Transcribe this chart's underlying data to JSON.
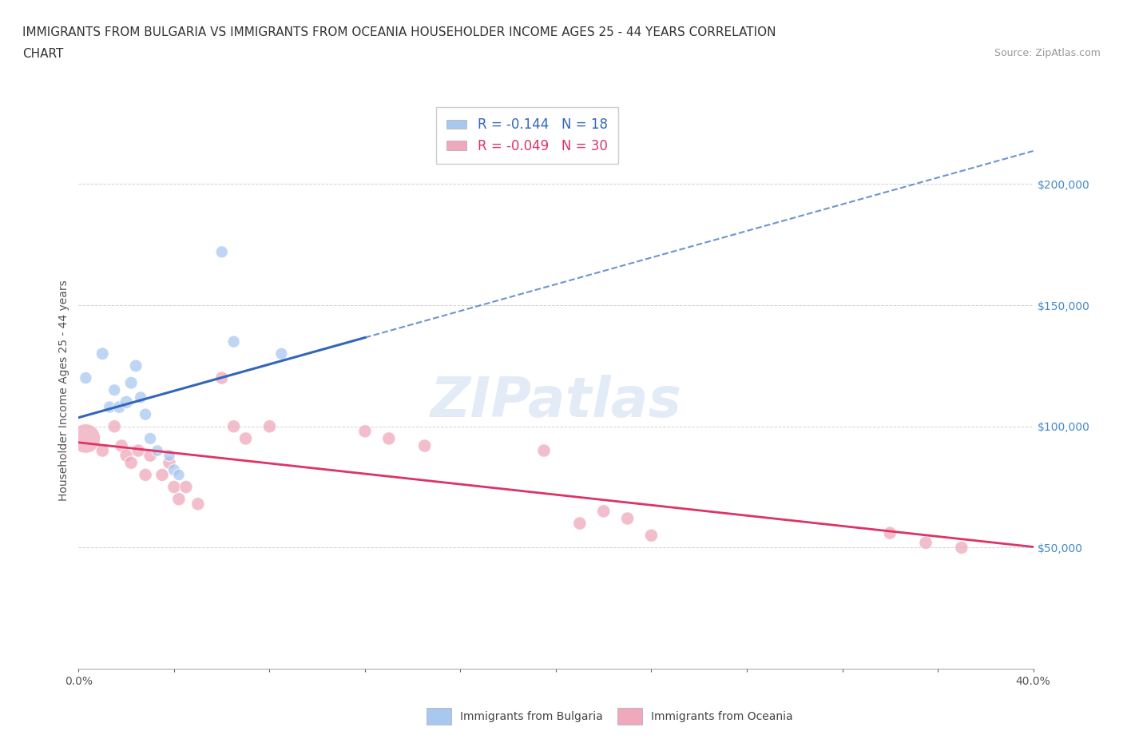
{
  "title_line1": "IMMIGRANTS FROM BULGARIA VS IMMIGRANTS FROM OCEANIA HOUSEHOLDER INCOME AGES 25 - 44 YEARS CORRELATION",
  "title_line2": "CHART",
  "source_text": "Source: ZipAtlas.com",
  "ylabel": "Householder Income Ages 25 - 44 years",
  "xlim": [
    0.0,
    0.4
  ],
  "ylim": [
    0,
    230000
  ],
  "yticks": [
    0,
    50000,
    100000,
    150000,
    200000
  ],
  "xticks": [
    0.0,
    0.04,
    0.08,
    0.12,
    0.16,
    0.2,
    0.24,
    0.28,
    0.32,
    0.36,
    0.4
  ],
  "bg_color": "#ffffff",
  "grid_color": "#cccccc",
  "bulgaria_color": "#a8c8f0",
  "oceania_color": "#f0a8bc",
  "bulgaria_line_color": "#3366bb",
  "oceania_line_color": "#dd3366",
  "bulgaria_R": -0.144,
  "bulgaria_N": 18,
  "oceania_R": -0.049,
  "oceania_N": 30,
  "bulgaria_x": [
    0.003,
    0.01,
    0.013,
    0.015,
    0.017,
    0.02,
    0.022,
    0.024,
    0.026,
    0.028,
    0.03,
    0.033,
    0.038,
    0.04,
    0.042,
    0.06,
    0.065,
    0.085
  ],
  "bulgaria_y": [
    120000,
    130000,
    108000,
    115000,
    108000,
    110000,
    118000,
    125000,
    112000,
    105000,
    95000,
    90000,
    88000,
    82000,
    80000,
    172000,
    135000,
    130000
  ],
  "bulgaria_sizes": [
    120,
    130,
    120,
    120,
    130,
    140,
    130,
    130,
    120,
    120,
    120,
    110,
    110,
    120,
    110,
    120,
    120,
    120
  ],
  "oceania_x": [
    0.003,
    0.01,
    0.015,
    0.018,
    0.02,
    0.022,
    0.025,
    0.028,
    0.03,
    0.035,
    0.038,
    0.04,
    0.042,
    0.045,
    0.05,
    0.06,
    0.065,
    0.07,
    0.08,
    0.12,
    0.13,
    0.145,
    0.195,
    0.21,
    0.22,
    0.23,
    0.24,
    0.34,
    0.355,
    0.37
  ],
  "oceania_y": [
    95000,
    90000,
    100000,
    92000,
    88000,
    85000,
    90000,
    80000,
    88000,
    80000,
    85000,
    75000,
    70000,
    75000,
    68000,
    120000,
    100000,
    95000,
    100000,
    98000,
    95000,
    92000,
    90000,
    60000,
    65000,
    62000,
    55000,
    56000,
    52000,
    50000
  ],
  "oceania_sizes": [
    700,
    140,
    140,
    140,
    140,
    140,
    140,
    140,
    140,
    140,
    140,
    140,
    140,
    140,
    140,
    140,
    140,
    140,
    140,
    140,
    140,
    140,
    140,
    140,
    140,
    140,
    140,
    140,
    140,
    140
  ]
}
